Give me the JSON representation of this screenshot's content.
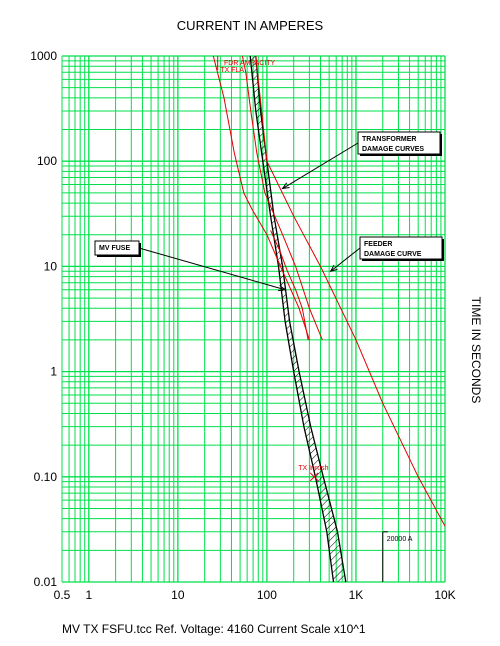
{
  "chart_data": {
    "type": "line",
    "title": "CURRENT IN AMPERES",
    "ylabel": "TIME IN SECONDS",
    "footer": "MV TX FSFU.tcc   Ref. Voltage: 4160   Current Scale x10^1",
    "x_scale": "log",
    "y_scale": "log",
    "xlim": [
      0.5,
      10000
    ],
    "ylim": [
      0.01,
      1000
    ],
    "grid": true,
    "x_ticks": [
      {
        "value": 0.5,
        "label": "0.5"
      },
      {
        "value": 1,
        "label": "1"
      },
      {
        "value": 10,
        "label": "10"
      },
      {
        "value": 100,
        "label": "100"
      },
      {
        "value": 1000,
        "label": "1K"
      },
      {
        "value": 10000,
        "label": "10K"
      }
    ],
    "y_ticks": [
      {
        "value": 1000,
        "label": "1000"
      },
      {
        "value": 100,
        "label": "100"
      },
      {
        "value": 10,
        "label": "10"
      },
      {
        "value": 1,
        "label": "1"
      },
      {
        "value": 0.1,
        "label": "0.10"
      },
      {
        "value": 0.01,
        "label": "0.01"
      }
    ],
    "colors": {
      "grid": "#00e04b",
      "red": "#e00000",
      "black": "#000000",
      "background": "#ffffff"
    },
    "series": [
      {
        "key": "fuse_min",
        "color": "#000000",
        "points": [
          [
            65,
            1000
          ],
          [
            75,
            300
          ],
          [
            90,
            100
          ],
          [
            110,
            30
          ],
          [
            135,
            10
          ],
          [
            160,
            3
          ],
          [
            200,
            1
          ],
          [
            260,
            0.3
          ],
          [
            350,
            0.1
          ],
          [
            470,
            0.03
          ],
          [
            560,
            0.01
          ]
        ]
      },
      {
        "key": "fuse_max",
        "color": "#000000",
        "points": [
          [
            75,
            1000
          ],
          [
            85,
            300
          ],
          [
            100,
            100
          ],
          [
            120,
            30
          ],
          [
            150,
            10
          ],
          [
            180,
            3
          ],
          [
            230,
            1
          ],
          [
            310,
            0.3
          ],
          [
            430,
            0.1
          ],
          [
            620,
            0.03
          ],
          [
            770,
            0.01
          ]
        ]
      },
      {
        "key": "tx_damage_1",
        "color": "#e00000",
        "points": [
          [
            53,
            1000
          ],
          [
            58,
            700
          ],
          [
            66,
            300
          ],
          [
            77,
            120
          ],
          [
            95,
            50
          ],
          [
            150,
            20
          ],
          [
            210,
            10
          ],
          [
            300,
            4
          ],
          [
            420,
            2
          ]
        ]
      },
      {
        "key": "tx_damage_2",
        "color": "#e00000",
        "points": [
          [
            25,
            1000
          ],
          [
            33,
            400
          ],
          [
            43,
            120
          ],
          [
            55,
            50
          ],
          [
            68,
            35
          ],
          [
            100,
            20
          ],
          [
            150,
            9
          ],
          [
            230,
            4
          ],
          [
            300,
            2
          ]
        ]
      },
      {
        "key": "tx_damage_3",
        "color": "#e00000",
        "points": [
          [
            110,
            22
          ],
          [
            140,
            14
          ],
          [
            170,
            9
          ],
          [
            210,
            6
          ],
          [
            250,
            4
          ],
          [
            290,
            2
          ]
        ]
      },
      {
        "key": "feeder_damage",
        "color": "#e00000",
        "points": [
          [
            75,
            1000
          ],
          [
            100,
            100
          ],
          [
            200,
            30
          ],
          [
            400,
            10
          ],
          [
            1000,
            2
          ],
          [
            2000,
            0.5
          ],
          [
            5000,
            0.1
          ],
          [
            10000,
            0.034
          ]
        ]
      },
      {
        "key": "tx_inrush",
        "color": "#e00000",
        "points": [
          [
            28,
            1000
          ],
          [
            28,
            900
          ]
        ]
      }
    ],
    "markers": [
      {
        "label": "TX Inrush",
        "x": 340,
        "y": 0.1,
        "color": "#e00000"
      },
      {
        "label": "20000 A",
        "x": 2000,
        "y": 0.03,
        "color": "#000000"
      }
    ],
    "annotations": [
      {
        "text": "FDR AMPACITY",
        "color": "#e00000"
      },
      {
        "text": "TX FLA",
        "color": "#e00000"
      }
    ],
    "callouts": [
      {
        "lines": [
          "TRANSFORMER",
          "DAMAGE CURVES"
        ],
        "box_x": 8500,
        "box_y": 150,
        "target_x": 150,
        "target_y": 55
      },
      {
        "lines": [
          "FEEDER",
          "DAMAGE CURVE"
        ],
        "box_x": 8500,
        "box_y": 13,
        "target_x": 520,
        "target_y": 9
      },
      {
        "lines": [
          "MV FUSE"
        ],
        "box_x": 3.3,
        "box_y": 17,
        "target_x": 160,
        "target_y": 6
      }
    ]
  }
}
